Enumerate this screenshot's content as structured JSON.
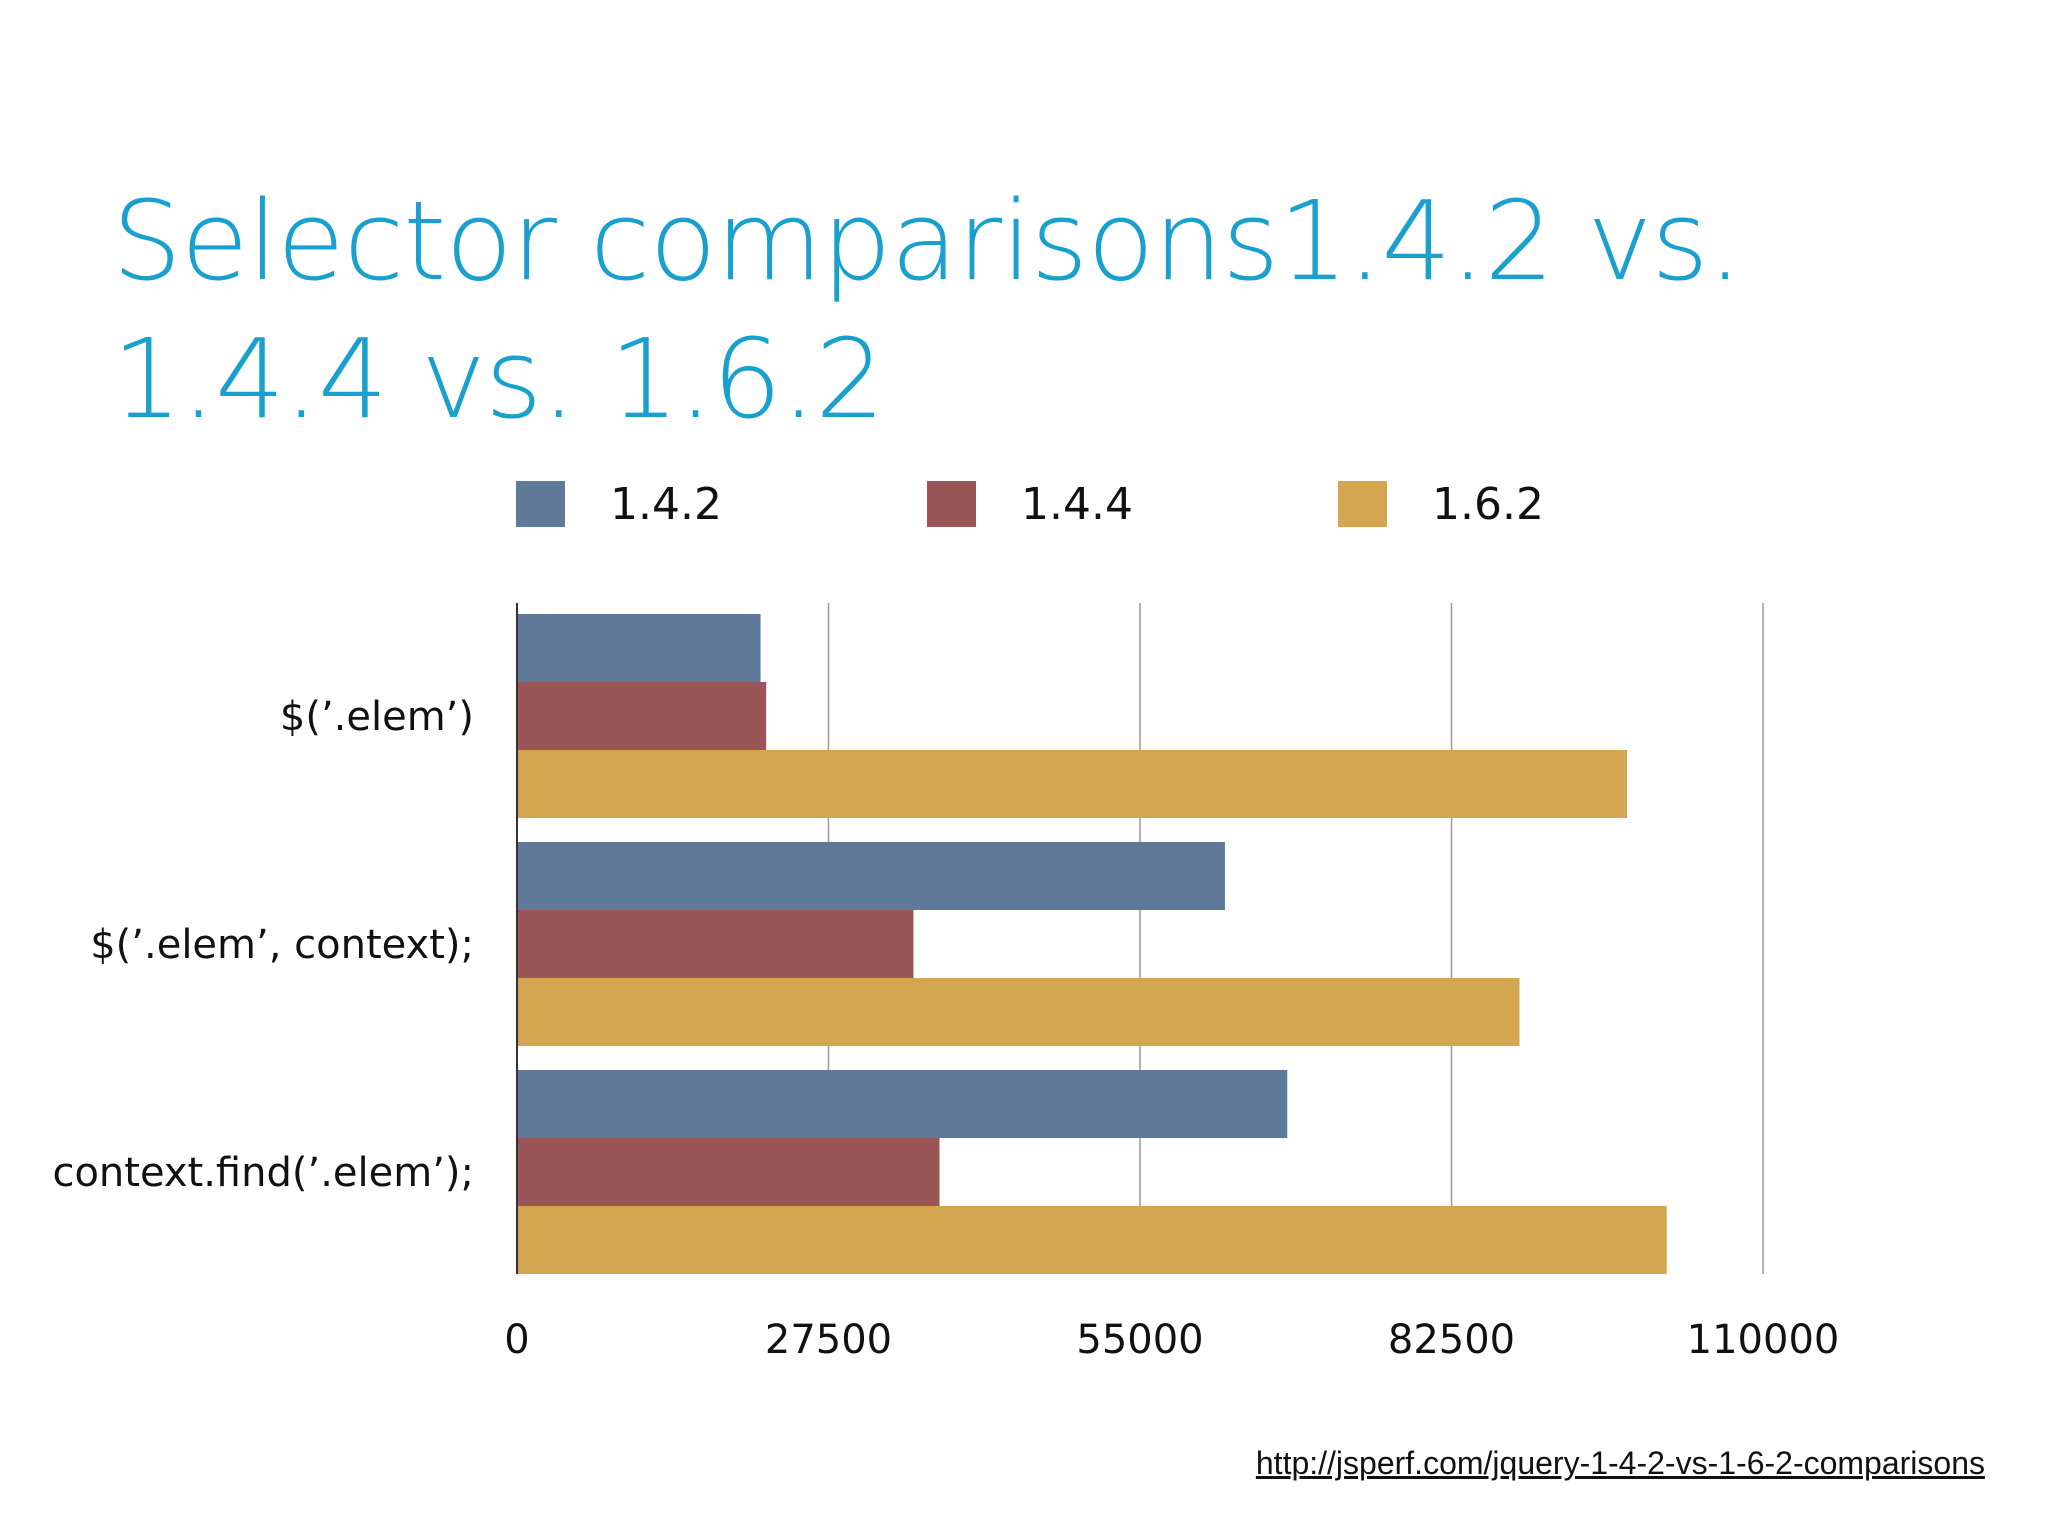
{
  "slide": {
    "title": "Selector comparisons1.4.2 vs. 1.4.4 vs. 1.6.2",
    "source_link": "http://jsperf.com/jquery-1-4-2-vs-1-6-2-comparisons"
  },
  "chart_data": {
    "type": "bar",
    "orientation": "horizontal",
    "categories": [
      "$('.elem')",
      "$('.elem', context);",
      "context.find('.elem');"
    ],
    "series": [
      {
        "name": "1.4.2",
        "color": "#5f7a98",
        "values": [
          21500,
          62500,
          68000
        ]
      },
      {
        "name": "1.4.4",
        "color": "#9a5556",
        "values": [
          22000,
          35000,
          37300
        ]
      },
      {
        "name": "1.6.2",
        "color": "#d4a652",
        "values": [
          98000,
          88500,
          101500
        ]
      }
    ],
    "xlim": [
      0,
      110000
    ],
    "xticks": [
      0,
      27500,
      55000,
      82500,
      110000
    ],
    "grid": true,
    "legend_position": "top"
  }
}
